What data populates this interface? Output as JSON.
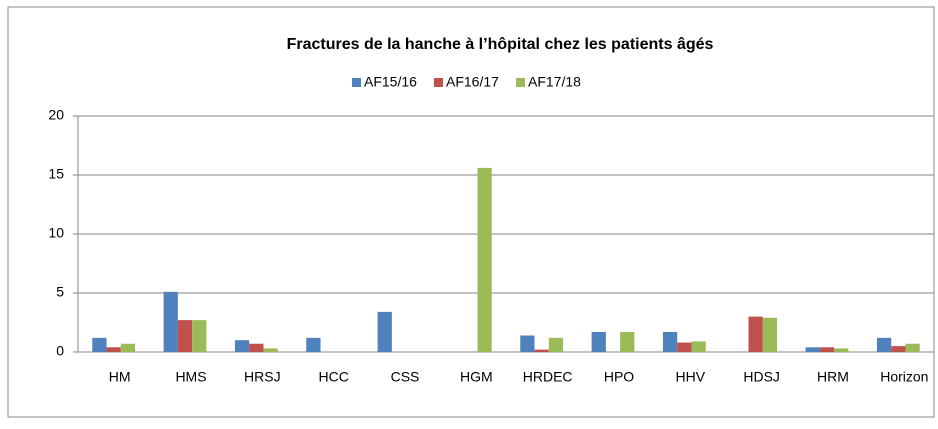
{
  "chart_data": {
    "type": "bar",
    "title": "Fractures de la hanche à l’hôpital chez les patients âgés",
    "categories": [
      "HM",
      "HMS",
      "HRSJ",
      "HCC",
      "CSS",
      "HGM",
      "HRDEC",
      "HPO",
      "HHV",
      "HDSJ",
      "HRM",
      "Horizon"
    ],
    "series": [
      {
        "name": "AF15/16",
        "color": "#4f81bd",
        "values": [
          1.2,
          5.1,
          1.0,
          1.2,
          3.4,
          0,
          1.4,
          1.7,
          1.7,
          0,
          0.4,
          1.2
        ]
      },
      {
        "name": "AF16/17",
        "color": "#c0504d",
        "values": [
          0.4,
          2.7,
          0.7,
          0,
          0,
          0,
          0.2,
          0,
          0.8,
          3.0,
          0.4,
          0.5
        ]
      },
      {
        "name": "AF17/18",
        "color": "#9bbb59",
        "values": [
          0.7,
          2.7,
          0.3,
          0,
          0,
          15.6,
          1.2,
          1.7,
          0.9,
          2.9,
          0.3,
          0.7
        ]
      }
    ],
    "ylim": [
      0,
      20
    ],
    "yticks": [
      0,
      5,
      10,
      15,
      20
    ],
    "grid": true,
    "legend": "top"
  }
}
